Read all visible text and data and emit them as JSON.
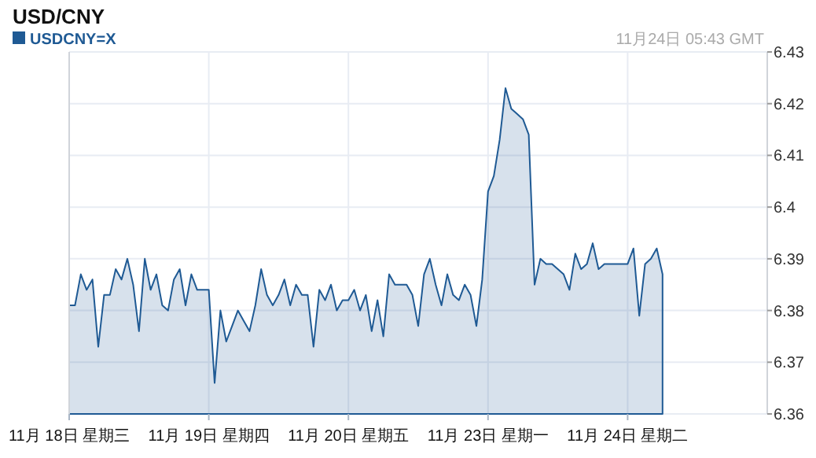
{
  "chart_data": {
    "type": "area",
    "title": "USD/CNY",
    "annotations": [
      "11月24日 05:43 GMT"
    ],
    "categories": [
      "11月 18日 星期三",
      null,
      null,
      null,
      null,
      null,
      null,
      null,
      null,
      null,
      null,
      null,
      null,
      null,
      null,
      null,
      null,
      null,
      null,
      null,
      null,
      null,
      null,
      null,
      "11月 19日 星期四",
      null,
      null,
      null,
      null,
      null,
      null,
      null,
      null,
      null,
      null,
      null,
      null,
      null,
      null,
      null,
      null,
      null,
      null,
      null,
      null,
      null,
      null,
      null,
      "11月 20日 星期五",
      null,
      null,
      null,
      null,
      null,
      null,
      null,
      null,
      null,
      null,
      null,
      null,
      null,
      null,
      null,
      null,
      null,
      null,
      null,
      null,
      null,
      null,
      null,
      "11月 23日 星期一",
      null,
      null,
      null,
      null,
      null,
      null,
      null,
      null,
      null,
      null,
      null,
      null,
      null,
      null,
      null,
      null,
      null,
      null,
      null,
      null,
      null,
      null,
      null,
      "11月 24日 星期二",
      null,
      null,
      null,
      null,
      null,
      null,
      null,
      null,
      null,
      null,
      null,
      null,
      null,
      null,
      null,
      null,
      null,
      null,
      null,
      null,
      null,
      null,
      null
    ],
    "ylim": [
      6.36,
      6.43
    ],
    "yticks": [
      6.36,
      6.37,
      6.38,
      6.39,
      6.4,
      6.41,
      6.42,
      6.43
    ],
    "grid": true,
    "legend": "top left",
    "series": [
      {
        "name": "USDCNY=X",
        "color": "#1f5a94",
        "values": [
          6.381,
          6.381,
          6.387,
          6.384,
          6.386,
          6.373,
          6.383,
          6.383,
          6.388,
          6.386,
          6.39,
          6.385,
          6.376,
          6.39,
          6.384,
          6.387,
          6.381,
          6.38,
          6.386,
          6.388,
          6.381,
          6.387,
          6.384,
          6.384,
          6.384,
          6.366,
          6.38,
          6.374,
          6.377,
          6.38,
          6.378,
          6.376,
          6.381,
          6.388,
          6.383,
          6.381,
          6.383,
          6.386,
          6.381,
          6.385,
          6.383,
          6.383,
          6.373,
          6.384,
          6.382,
          6.385,
          6.38,
          6.382,
          6.382,
          6.384,
          6.38,
          6.383,
          6.376,
          6.382,
          6.375,
          6.387,
          6.385,
          6.385,
          6.385,
          6.383,
          6.377,
          6.387,
          6.39,
          6.385,
          6.381,
          6.387,
          6.383,
          6.382,
          6.385,
          6.383,
          6.377,
          6.386,
          6.403,
          6.406,
          6.413,
          6.423,
          6.419,
          6.418,
          6.417,
          6.414,
          6.385,
          6.39,
          6.389,
          6.389,
          6.388,
          6.387,
          6.384,
          6.391,
          6.388,
          6.389,
          6.393,
          6.388,
          6.389,
          6.389,
          6.389,
          6.389,
          6.389,
          6.392,
          6.379,
          6.389,
          6.39,
          6.392,
          6.387,
          null,
          null,
          null,
          null,
          null,
          null,
          null,
          null,
          null,
          null,
          null,
          null,
          null,
          null,
          null,
          null,
          null
        ]
      }
    ]
  }
}
